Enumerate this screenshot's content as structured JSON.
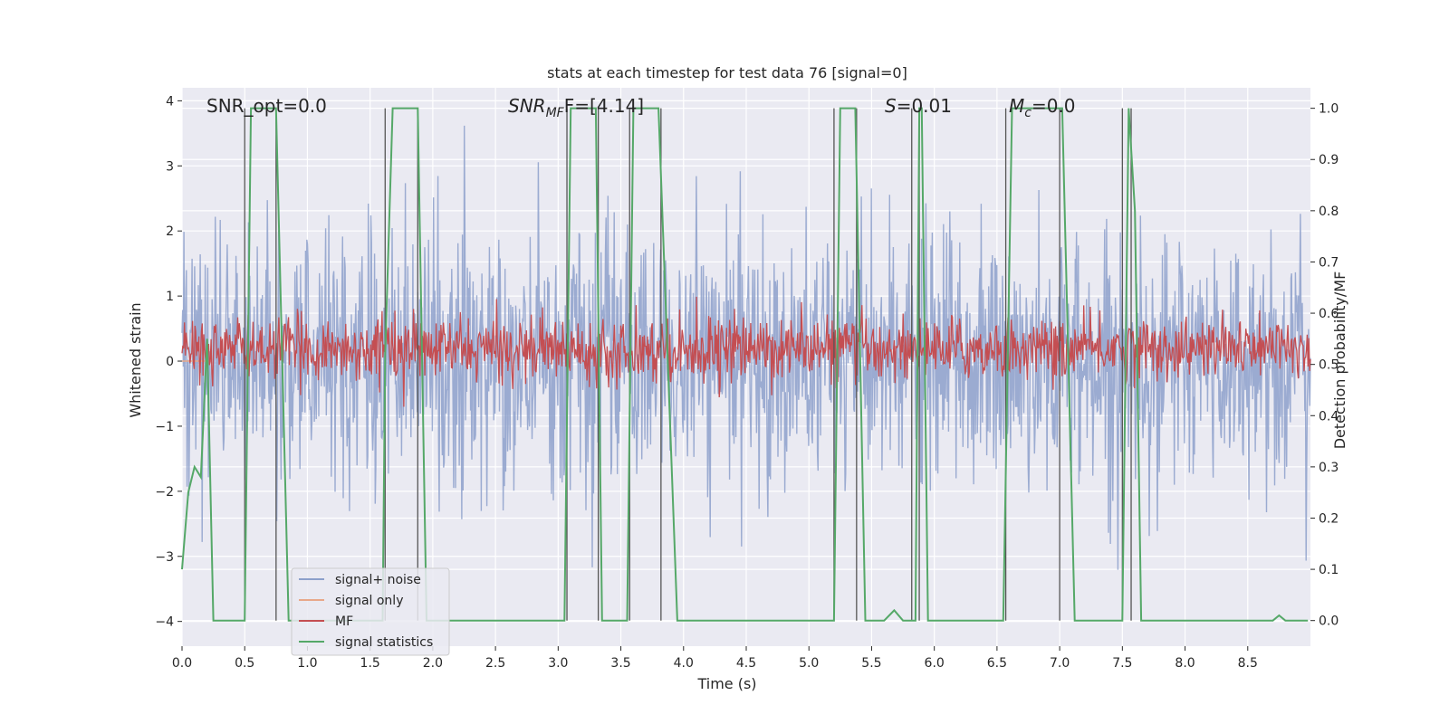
{
  "chart_data": {
    "type": "line",
    "title": "stats at each timestep for test data 76 [signal=0]",
    "xlabel": "Time (s)",
    "ylabel_left": "Whitened strain",
    "ylabel_right": "Detection probability/MF",
    "xlim": [
      0,
      9.0
    ],
    "ylim_left": [
      -4.38,
      4.2
    ],
    "ylim_right": [
      -0.05,
      1.04
    ],
    "x_ticks": [
      0.0,
      0.5,
      1.0,
      1.5,
      2.0,
      2.5,
      3.0,
      3.5,
      4.0,
      4.5,
      5.0,
      5.5,
      6.0,
      6.5,
      7.0,
      7.5,
      8.0,
      8.5
    ],
    "x_tick_labels": [
      "0.0",
      "0.5",
      "1.0",
      "1.5",
      "2.0",
      "2.5",
      "3.0",
      "3.5",
      "4.0",
      "4.5",
      "5.0",
      "5.5",
      "6.0",
      "6.5",
      "7.0",
      "7.5",
      "8.0",
      "8.5"
    ],
    "y_left_ticks": [
      -4,
      -3,
      -2,
      -1,
      0,
      1,
      2,
      3,
      4
    ],
    "y_left_tick_labels": [
      "−4",
      "−3",
      "−2",
      "−1",
      "0",
      "1",
      "2",
      "3",
      "4"
    ],
    "y_right_ticks": [
      0.0,
      0.1,
      0.2,
      0.3,
      0.4,
      0.5,
      0.6,
      0.7,
      0.8,
      0.9,
      1.0
    ],
    "y_right_tick_labels": [
      "0.0",
      "0.1",
      "0.2",
      "0.3",
      "0.4",
      "0.5",
      "0.6",
      "0.7",
      "0.8",
      "0.9",
      "1.0"
    ],
    "grid": true,
    "background": "#eaeaf2",
    "annotations": {
      "snr_opt": "SNR_opt=0.0",
      "snr_mf_base": "SNR",
      "snr_mf_sub": "MF",
      "snr_mf_value": "F=[4.14]",
      "s_sym": "S",
      "s_value": "=0.01",
      "mc_sym": "M",
      "mc_sub": "c",
      "mc_value": "=0.0"
    },
    "legend": {
      "placement": "lower-left",
      "entries": [
        {
          "label": "signal+ noise",
          "color": "#8da0cb"
        },
        {
          "label": "signal only",
          "color": "#e8a88a"
        },
        {
          "label": "MF",
          "color": "#c44e52"
        },
        {
          "label": "signal statistics",
          "color": "#55a868"
        }
      ]
    },
    "series": [
      {
        "name": "signal+ noise",
        "axis": "left",
        "color": "#8da0cb",
        "description_kind": "noise",
        "amplitude_std": 0.95,
        "x_range": [
          0,
          9.0
        ]
      },
      {
        "name": "signal only",
        "axis": "left",
        "color": "#e8a88a",
        "values_constant": 0.0,
        "x_range": [
          0.0,
          0.2
        ]
      },
      {
        "name": "MF",
        "axis": "right",
        "color": "#c44e52",
        "center": 0.53,
        "spread": 0.03,
        "x_range": [
          0,
          9.0
        ]
      },
      {
        "name": "signal statistics",
        "axis": "right",
        "color": "#55a868",
        "x": [
          0.0,
          0.05,
          0.1,
          0.15,
          0.2,
          0.25,
          0.3,
          0.5,
          0.55,
          0.65,
          0.75,
          0.85,
          1.6,
          1.62,
          1.68,
          1.88,
          1.95,
          2.0,
          2.1,
          3.05,
          3.1,
          3.3,
          3.35,
          3.55,
          3.6,
          3.8,
          3.95,
          5.2,
          5.25,
          5.37,
          5.45,
          5.6,
          5.68,
          5.75,
          5.85,
          5.88,
          5.9,
          5.95,
          6.55,
          6.62,
          7.02,
          7.12,
          7.5,
          7.55,
          7.6,
          7.65,
          8.7,
          8.75,
          8.8,
          8.98
        ],
        "y": [
          0.1,
          0.25,
          0.3,
          0.28,
          0.55,
          0.0,
          0.0,
          0.0,
          1.0,
          1.0,
          1.0,
          0.0,
          0.0,
          0.52,
          1.0,
          1.0,
          0.0,
          0.0,
          0.0,
          0.0,
          1.0,
          1.0,
          0.0,
          0.0,
          1.0,
          1.0,
          0.0,
          0.0,
          1.0,
          1.0,
          0.0,
          0.0,
          0.02,
          0.0,
          0.0,
          1.0,
          1.0,
          0.0,
          0.0,
          1.0,
          1.0,
          0.0,
          0.0,
          1.0,
          0.8,
          0.0,
          0.0,
          0.01,
          0.0,
          0.0
        ]
      },
      {
        "name": "vertical markers",
        "axis": "right",
        "color": "#555555",
        "x": [
          0.5,
          0.75,
          1.62,
          1.88,
          3.07,
          3.32,
          3.57,
          3.82,
          5.2,
          5.38,
          5.82,
          5.88,
          6.57,
          7.0,
          7.5,
          7.57
        ],
        "y_range": [
          0.0,
          1.0
        ]
      }
    ]
  }
}
